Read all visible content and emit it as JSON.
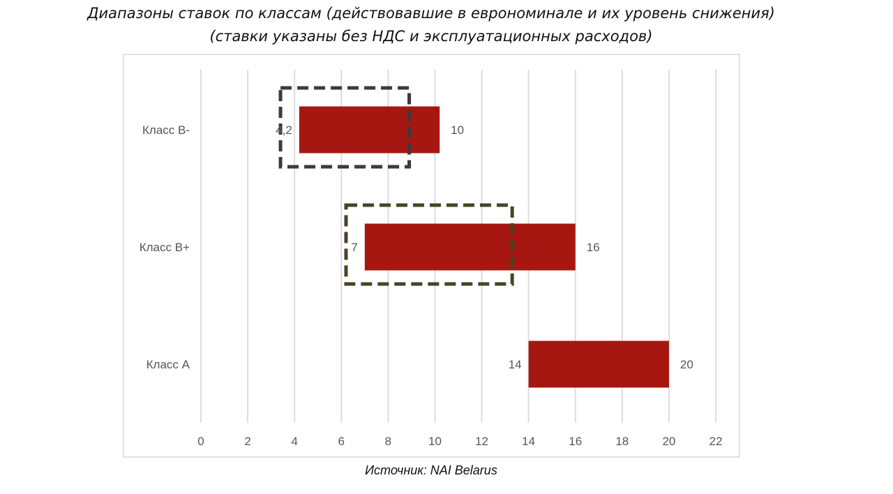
{
  "chart_data": {
    "type": "bar",
    "orientation": "horizontal-floating",
    "title": "Диапазоны ставок по классам (действовавшие в еврономинале и их уровень снижения)",
    "subtitle": "(ставки указаны без НДС и эксплуатационных расходов)",
    "categories": [
      "Класс B-",
      "Класс B+",
      "Класс A"
    ],
    "ranges": [
      {
        "category": "Класс B-",
        "low": 4.2,
        "high": 10.2,
        "low_label": "4,2",
        "high_label": "10"
      },
      {
        "category": "Класс B+",
        "low": 7,
        "high": 16,
        "low_label": "7",
        "high_label": "16"
      },
      {
        "category": "Класс A",
        "low": 14,
        "high": 20,
        "low_label": "14",
        "high_label": "20"
      }
    ],
    "highlight_boxes": [
      {
        "category": "Класс B-",
        "low": 3.4,
        "high": 8.9,
        "color": "#3a3a40"
      },
      {
        "category": "Класс B+",
        "low": 6.2,
        "high": 13.3,
        "color": "#4a4324"
      }
    ],
    "xlim": [
      0,
      22
    ],
    "x_ticks": [
      0,
      2,
      4,
      6,
      8,
      10,
      12,
      14,
      16,
      18,
      20,
      22
    ],
    "grid": true,
    "bar_color": "#a51710",
    "grid_color": "#dddddd"
  },
  "source": "Источник: NAI Belarus"
}
